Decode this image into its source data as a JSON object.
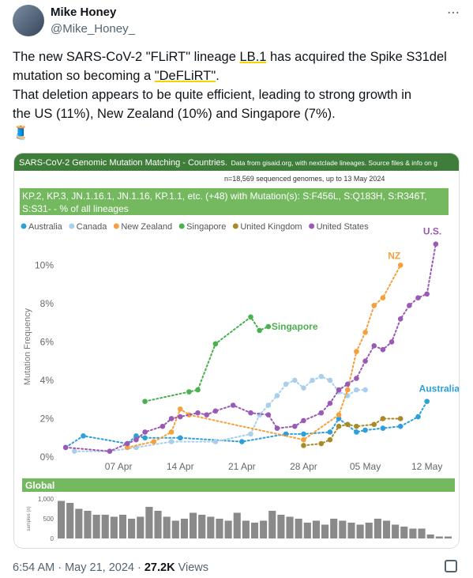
{
  "tweet": {
    "author": "Mike Honey",
    "handle": "@Mike_Honey_",
    "text": [
      [
        "The new SARS-CoV-2 \"FLiRT\" lineage ",
        "LB.1",
        " has acquired the Spike S31del"
      ],
      [
        "mutation so becoming a ",
        "\"DeFLiRT\"",
        "."
      ],
      [
        "That deletion appears to be quite efficient, leading to strong growth in"
      ],
      [
        "the US (11%), New Zealand (10%) and Singapore (7%)."
      ],
      [
        "🧵"
      ]
    ]
  },
  "chart_header": {
    "title": "SARS-CoV-2 Genomic Mutation Matching - Countries.",
    "source": "Data from gisaid.org, with nextclade lineages. Source files & info on g",
    "subtitle": "n=18,569 sequenced genomes, up to 13 May 2024",
    "selection": "KP.2, KP.3, JN.1.16.1, JN.1.16, KP.1.1, etc. (+48) with Mutation(s): S:F456L, S:Q183H, S:R346T, S:S31- - % of all lineages"
  },
  "chart_data": [
    {
      "type": "line",
      "ylabel": "Mutation Frequency",
      "xlim": [
        "2024-03-31",
        "2024-05-14"
      ],
      "xticks": [
        {
          "value": "2024-04-07",
          "label": "07 Apr"
        },
        {
          "value": "2024-04-14",
          "label": "14 Apr"
        },
        {
          "value": "2024-04-21",
          "label": "21 Apr"
        },
        {
          "value": "2024-04-28",
          "label": "28 Apr"
        },
        {
          "value": "2024-05-05",
          "label": "05 May"
        },
        {
          "value": "2024-05-12",
          "label": "12 May"
        }
      ],
      "ylim": [
        0,
        11.5
      ],
      "yticks": [
        {
          "value": 0,
          "label": "0%"
        },
        {
          "value": 2,
          "label": "2%"
        },
        {
          "value": 4,
          "label": "4%"
        },
        {
          "value": 6,
          "label": "6%"
        },
        {
          "value": 8,
          "label": "8%"
        },
        {
          "value": 10,
          "label": "10%"
        }
      ],
      "grid": false,
      "legend": "top",
      "series": [
        {
          "name": "Australia",
          "color": "#2e9fd9",
          "label": "Australia",
          "x": [
            "2024-04-01",
            "2024-04-03",
            "2024-04-08",
            "2024-04-09",
            "2024-04-10",
            "2024-04-14",
            "2024-04-21",
            "2024-04-26",
            "2024-04-28",
            "2024-05-01",
            "2024-05-02",
            "2024-05-04",
            "2024-05-05",
            "2024-05-07",
            "2024-05-09",
            "2024-05-11",
            "2024-05-12"
          ],
          "values": [
            0.5,
            1.1,
            0.7,
            1.1,
            1.0,
            1.0,
            0.8,
            1.2,
            1.2,
            1.3,
            2.0,
            1.3,
            1.4,
            1.5,
            1.6,
            2.1,
            2.9
          ]
        },
        {
          "name": "Canada",
          "color": "#a9cfea",
          "x": [
            "2024-04-02",
            "2024-04-06",
            "2024-04-09",
            "2024-04-13",
            "2024-04-18",
            "2024-04-22",
            "2024-04-23",
            "2024-04-24",
            "2024-04-25",
            "2024-04-26",
            "2024-04-27",
            "2024-04-28",
            "2024-04-29",
            "2024-04-30",
            "2024-05-01",
            "2024-05-02",
            "2024-05-03",
            "2024-05-04",
            "2024-05-05"
          ],
          "values": [
            0.3,
            0.3,
            0.5,
            0.8,
            0.8,
            1.2,
            2.2,
            2.7,
            3.2,
            3.8,
            4.0,
            3.6,
            4.0,
            4.2,
            4.0,
            3.4,
            3.2,
            3.5,
            3.5
          ]
        },
        {
          "name": "New Zealand",
          "color": "#f5a03c",
          "label": "NZ",
          "x": [
            "2024-04-08",
            "2024-04-11",
            "2024-04-13",
            "2024-04-14",
            "2024-04-15",
            "2024-04-28",
            "2024-05-02",
            "2024-05-03",
            "2024-05-04",
            "2024-05-05",
            "2024-05-06",
            "2024-05-07",
            "2024-05-09"
          ],
          "values": [
            0.5,
            0.8,
            1.3,
            2.5,
            2.2,
            0.9,
            2.2,
            3.5,
            5.5,
            6.5,
            7.9,
            8.3,
            10.0
          ]
        },
        {
          "name": "Singapore",
          "color": "#4caf50",
          "label": "Singapore",
          "x": [
            "2024-04-10",
            "2024-04-15",
            "2024-04-16",
            "2024-04-18",
            "2024-04-22",
            "2024-04-23",
            "2024-04-24"
          ],
          "values": [
            2.9,
            3.4,
            3.5,
            5.9,
            7.3,
            6.6,
            6.8
          ]
        },
        {
          "name": "United Kingdom",
          "color": "#a88a2a",
          "x": [
            "2024-04-28",
            "2024-04-30",
            "2024-05-01",
            "2024-05-02",
            "2024-05-03",
            "2024-05-04",
            "2024-05-06",
            "2024-05-07",
            "2024-05-09"
          ],
          "values": [
            0.6,
            0.7,
            0.9,
            1.6,
            1.7,
            1.6,
            1.7,
            2.0,
            2.0
          ]
        },
        {
          "name": "United States",
          "color": "#9b59b6",
          "label": "U.S.",
          "x": [
            "2024-04-01",
            "2024-04-06",
            "2024-04-08",
            "2024-04-09",
            "2024-04-10",
            "2024-04-12",
            "2024-04-13",
            "2024-04-14",
            "2024-04-16",
            "2024-04-17",
            "2024-04-18",
            "2024-04-20",
            "2024-04-22",
            "2024-04-24",
            "2024-04-25",
            "2024-04-27",
            "2024-04-28",
            "2024-04-30",
            "2024-05-01",
            "2024-05-02",
            "2024-05-03",
            "2024-05-04",
            "2024-05-05",
            "2024-05-06",
            "2024-05-07",
            "2024-05-08",
            "2024-05-09",
            "2024-05-10",
            "2024-05-11",
            "2024-05-12",
            "2024-05-13"
          ],
          "values": [
            0.5,
            0.3,
            0.7,
            0.9,
            1.3,
            1.6,
            2.0,
            2.1,
            2.3,
            2.2,
            2.4,
            2.7,
            2.3,
            2.2,
            1.5,
            1.6,
            1.9,
            2.3,
            2.8,
            3.5,
            3.8,
            4.1,
            5.0,
            5.8,
            5.6,
            6.0,
            7.2,
            7.9,
            8.3,
            8.5,
            11.1
          ]
        }
      ]
    },
    {
      "type": "bar",
      "title": "Global",
      "ylabel": "samples (n)",
      "color": "#8a8a8a",
      "ylim": [
        0,
        1000
      ],
      "yticks": [
        0,
        500,
        {
          "value": 1000,
          "label": "1,000"
        }
      ],
      "values": [
        950,
        900,
        750,
        700,
        600,
        600,
        550,
        600,
        500,
        550,
        800,
        700,
        550,
        450,
        500,
        650,
        600,
        550,
        500,
        450,
        650,
        450,
        400,
        450,
        700,
        600,
        550,
        500,
        400,
        450,
        350,
        500,
        450,
        400,
        350,
        400,
        500,
        450,
        350,
        300,
        250,
        250,
        100,
        50,
        50
      ]
    }
  ],
  "footer": {
    "time": "6:54 AM · May 21, 2024 · ",
    "views": "27.2K",
    "views_label": " Views"
  }
}
